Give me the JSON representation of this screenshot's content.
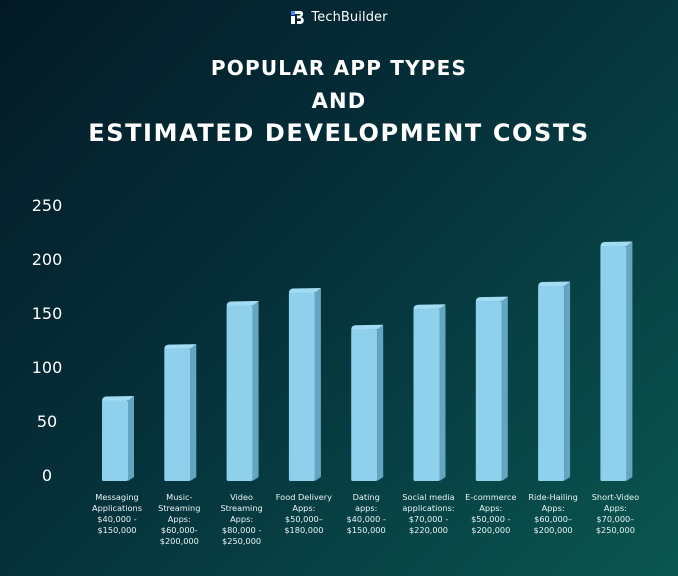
{
  "brand": {
    "logo_icon": "techbuilder-logo-icon",
    "name": "TechBuilder"
  },
  "title_lines": [
    "POPULAR APP TYPES",
    "AND",
    "ESTIMATED DEVELOPMENT COSTS"
  ],
  "colors": {
    "bar_front": "#8fd0ec",
    "bar_side": "#64a6c2",
    "bar_top": "#a3dbf2",
    "text": "#ffffff"
  },
  "chart_data": {
    "type": "bar",
    "title": "POPULAR APP TYPES AND ESTIMATED DEVELOPMENT COSTS",
    "xlabel": "",
    "ylabel": "",
    "ylim": [
      0,
      250
    ],
    "yticks": [
      "0",
      "50",
      "100",
      "150",
      "200",
      "250"
    ],
    "ytick_values": [
      0,
      50,
      100,
      150,
      200,
      250
    ],
    "grid": false,
    "legend": "none",
    "categories": [
      "Messaging\nApplications\n$40,000  -\n$150,000",
      "Music-\nStreaming\nApps:\n$60,000-\n$200,000",
      "Video\nStreaming\nApps:\n$80,000 -\n$250,000",
      "Food Delivery\nApps:\n$50,000–\n$180,000",
      "Dating\napps:\n$40,000 -\n$150,000",
      "Social media\napplications:\n$70,000 -\n$220,000",
      "E-commerce\nApps:\n$50,000 -\n$200,000",
      "Ride-Hailing\nApps:\n$60,000–\n$200,000",
      "Short-Video\nApps:\n$70,000–\n$250,000"
    ],
    "values": [
      75,
      123,
      163,
      175,
      141,
      160,
      167,
      181,
      218
    ]
  }
}
